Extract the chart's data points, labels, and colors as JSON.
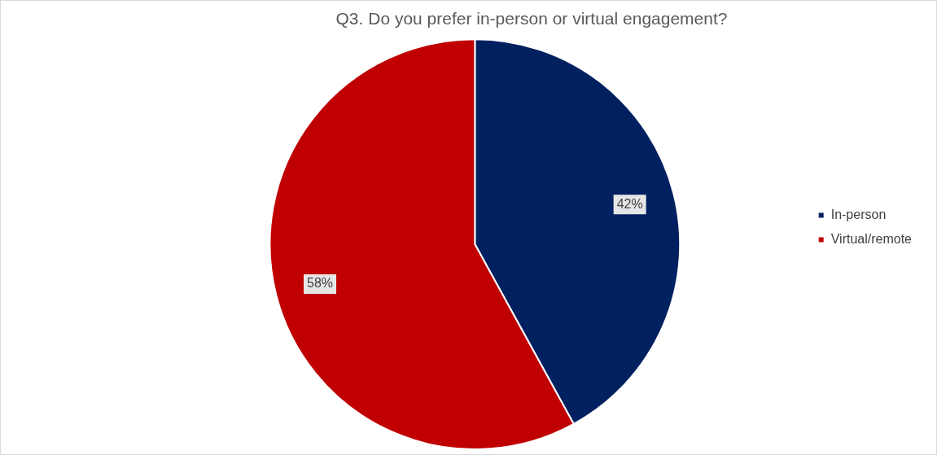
{
  "chart_data": {
    "type": "pie",
    "title": "Q3. Do you prefer in-person or virtual engagement?",
    "categories": [
      "In-person",
      "Virtual/remote"
    ],
    "values": [
      42,
      58
    ],
    "colors": [
      "#002060",
      "#c00000"
    ],
    "value_labels": [
      "42%",
      "58%"
    ],
    "legend": "right"
  }
}
